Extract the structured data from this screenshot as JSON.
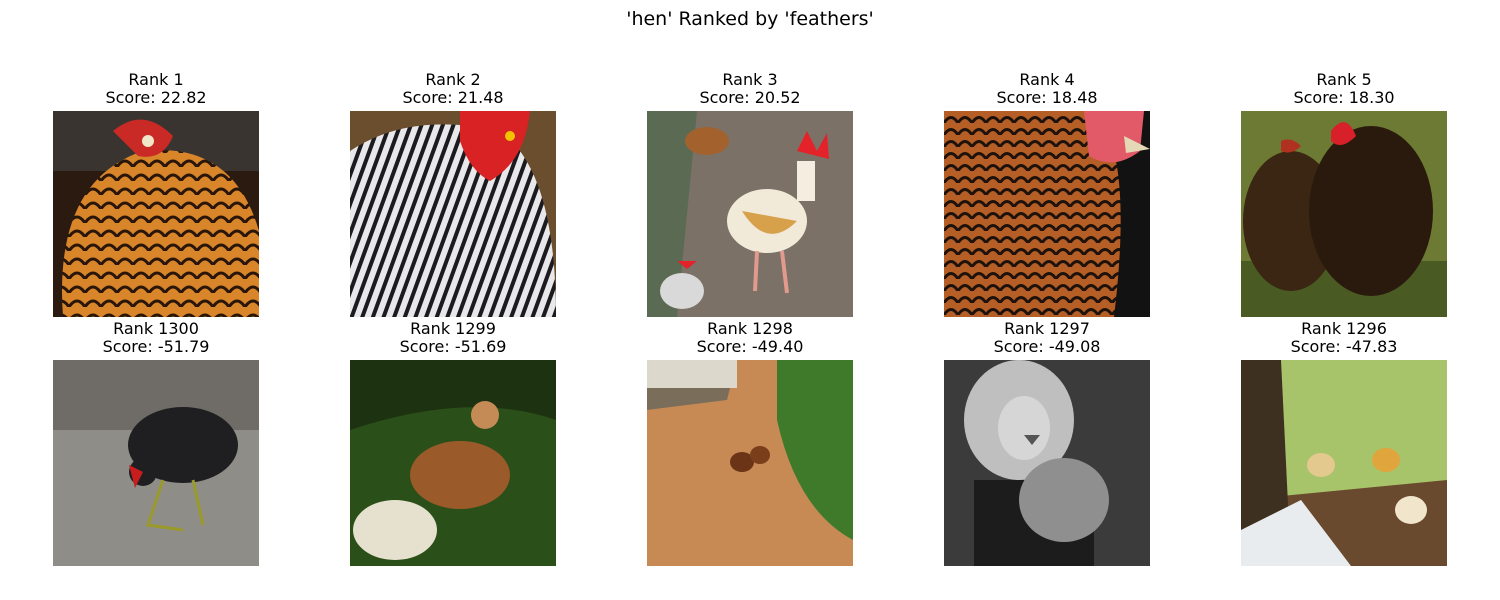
{
  "figure": {
    "suptitle": "'hen' Ranked by 'feathers'"
  },
  "top": [
    {
      "rank": "Rank 1",
      "score": "Score: 22.82"
    },
    {
      "rank": "Rank 2",
      "score": "Score: 21.48"
    },
    {
      "rank": "Rank 3",
      "score": "Score: 20.52"
    },
    {
      "rank": "Rank 4",
      "score": "Score: 18.48"
    },
    {
      "rank": "Rank 5",
      "score": "Score: 18.30"
    }
  ],
  "bottom": [
    {
      "rank": "Rank 1300",
      "score": "Score: -51.79"
    },
    {
      "rank": "Rank 1299",
      "score": "Score: -51.69"
    },
    {
      "rank": "Rank 1298",
      "score": "Score: -49.40"
    },
    {
      "rank": "Rank 1297",
      "score": "Score: -49.08"
    },
    {
      "rank": "Rank 1296",
      "score": "Score: -47.83"
    }
  ],
  "colors": {
    "brown": "#a0521e",
    "orange": "#d8862e",
    "red": "#d8202a",
    "black": "#1a1512",
    "green": "#4f8a2a"
  }
}
